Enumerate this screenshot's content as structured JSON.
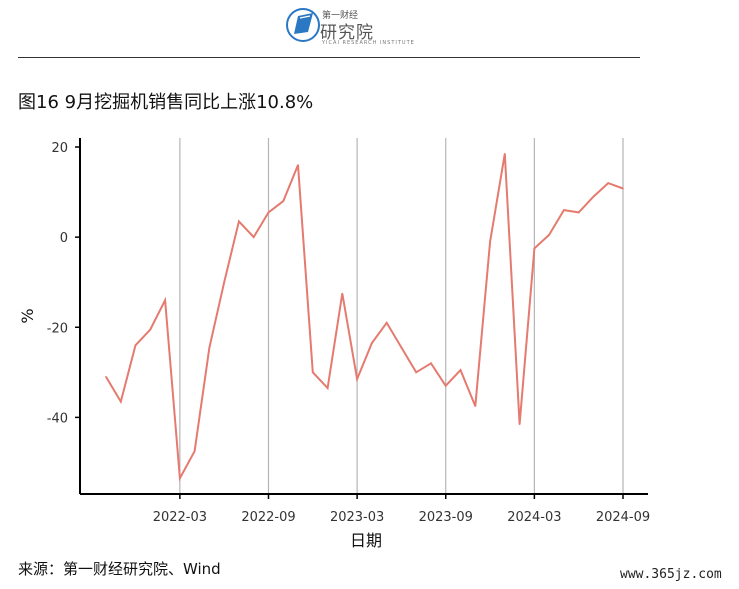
{
  "header": {
    "logo_line1": "第一财经",
    "logo_line2": "研究院",
    "logo_line3": "YICAI RESEARCH INSTITUTE"
  },
  "figure_title": "图16 9月挖掘机销售同比上涨10.8%",
  "source": "来源：第一财经研究院、Wind",
  "watermark": "www.365jz.com",
  "colors": {
    "line": "#e57a6f",
    "grid": "#b5b5b5",
    "axis": "#000000"
  },
  "chart_data": {
    "type": "line",
    "xlabel": "日期",
    "ylabel": "%",
    "x_tick_labels": [
      "2022-03",
      "2022-09",
      "2023-03",
      "2023-09",
      "2024-03",
      "2024-09"
    ],
    "y_tick_labels": [
      "20",
      "0",
      "-20",
      "-40"
    ],
    "y_ticks": [
      20,
      0,
      -20,
      -40
    ],
    "ylim": [
      -57,
      22
    ],
    "x_start": "2021-10",
    "x_end": "2024-09",
    "grid": "vertical lines at x tick labels",
    "series": [
      {
        "x": [
          "2021-10",
          "2021-11",
          "2021-12",
          "2022-01",
          "2022-02",
          "2022-03",
          "2022-04",
          "2022-05",
          "2022-06",
          "2022-07",
          "2022-08",
          "2022-09",
          "2022-10",
          "2022-11",
          "2022-12",
          "2023-01",
          "2023-02",
          "2023-03",
          "2023-04",
          "2023-05",
          "2023-06",
          "2023-07",
          "2023-08",
          "2023-09",
          "2023-10",
          "2023-11",
          "2023-12",
          "2024-01",
          "2024-02",
          "2024-03",
          "2024-04",
          "2024-05",
          "2024-06",
          "2024-07",
          "2024-08",
          "2024-09"
        ],
        "values": [
          -31,
          -36.5,
          -24,
          -20.5,
          -14,
          -53.5,
          -47.5,
          -24.5,
          -10,
          3.5,
          0,
          5.5,
          8,
          16,
          -30,
          -33.5,
          -12.5,
          -31.5,
          -23.5,
          -19,
          -24.5,
          -30,
          -28,
          -33,
          -29.5,
          -37.5,
          -1,
          18.5,
          -41.5,
          -2.5,
          0.5,
          6,
          5.5,
          9,
          12,
          10.8
        ]
      }
    ]
  }
}
